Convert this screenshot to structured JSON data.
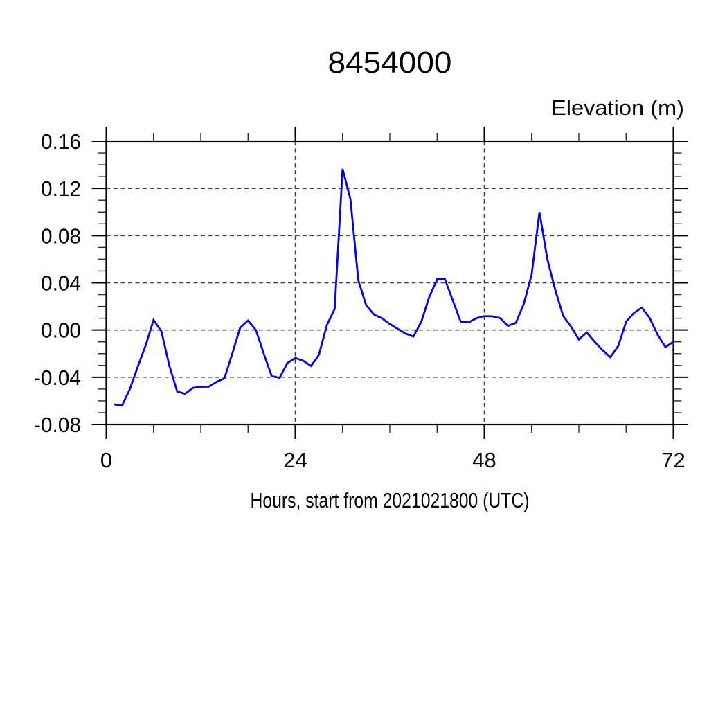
{
  "page": {
    "background": "#ffffff"
  },
  "chart_data": {
    "type": "line",
    "title": "8454000",
    "ylabel": "Elevation (m)",
    "xlabel": "Hours, start from 2021021800 (UTC)",
    "xlim": [
      0,
      72
    ],
    "ylim": [
      -0.08,
      0.16
    ],
    "xticks": [
      0,
      24,
      48,
      72
    ],
    "yticks": [
      -0.08,
      -0.04,
      0.0,
      0.04,
      0.08,
      0.12,
      0.16
    ],
    "x_minor_step": 6,
    "y_minor_step": 0.01,
    "grid": "dashed at major ticks",
    "legend": "none",
    "line_color": "#0505e0",
    "series": [
      {
        "name": "elevation",
        "x": [
          1,
          2,
          3,
          4,
          5,
          6,
          7,
          8,
          9,
          10,
          11,
          12,
          13,
          14,
          15,
          16,
          17,
          18,
          19,
          20,
          21,
          22,
          23,
          24,
          25,
          26,
          27,
          28,
          29,
          30,
          31,
          32,
          33,
          34,
          35,
          36,
          37,
          38,
          39,
          40,
          41,
          42,
          43,
          44,
          45,
          46,
          47,
          48,
          49,
          50,
          51,
          52,
          53,
          54,
          55,
          56,
          57,
          58,
          59,
          60,
          61,
          62,
          63,
          64,
          65,
          66,
          67,
          68,
          69,
          70,
          71,
          72
        ],
        "values": [
          -0.063,
          -0.064,
          -0.05,
          -0.031,
          -0.013,
          0.0085,
          -0.001,
          -0.03,
          -0.052,
          -0.054,
          -0.049,
          -0.048,
          -0.048,
          -0.044,
          -0.041,
          -0.02,
          0.002,
          0.008,
          0.0,
          -0.02,
          -0.039,
          -0.0405,
          -0.028,
          -0.0237,
          -0.026,
          -0.0305,
          -0.021,
          0.004,
          0.018,
          0.1365,
          0.111,
          0.042,
          0.021,
          0.013,
          0.01,
          0.005,
          0.001,
          -0.003,
          -0.0055,
          0.007,
          0.028,
          0.043,
          0.043,
          0.025,
          0.007,
          0.0065,
          0.01,
          0.0118,
          0.0116,
          0.01,
          0.0035,
          0.006,
          0.022,
          0.047,
          0.1,
          0.06,
          0.034,
          0.012,
          0.003,
          -0.008,
          -0.002,
          -0.01,
          -0.017,
          -0.023,
          -0.0135,
          0.007,
          0.0145,
          0.019,
          0.01,
          -0.004,
          -0.0145,
          -0.01
        ]
      }
    ]
  }
}
